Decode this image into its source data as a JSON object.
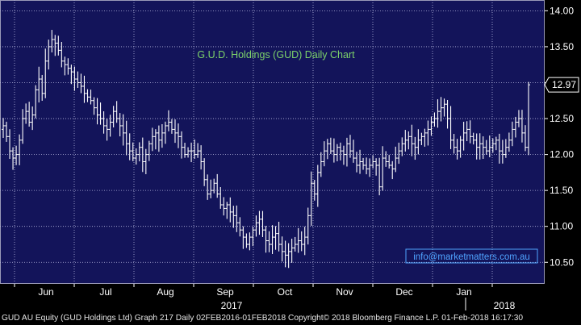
{
  "chart_data": {
    "type": "ohlc",
    "title": "G.U.D. Holdings (GUD) Daily Chart",
    "watermark": "info@marketmatters.com.au",
    "last_price_label": "12.97",
    "y_ticks": [
      "14.00",
      "13.50",
      "13.00",
      "12.50",
      "12.00",
      "11.50",
      "11.00",
      "10.50"
    ],
    "y_tick_values": [
      14.0,
      13.5,
      13.0,
      12.5,
      12.0,
      11.5,
      11.0,
      10.5
    ],
    "ylim": [
      10.2,
      14.15
    ],
    "month_labels": [
      "Jun",
      "Jul",
      "Aug",
      "Sep",
      "Oct",
      "Nov",
      "Dec",
      "Jan"
    ],
    "year_labels": [
      "2017",
      "2018"
    ],
    "grid": true,
    "colors": {
      "background": "#13145a",
      "grid": "#b8b8e0",
      "bars": "#ffffff",
      "title": "#7dd36a",
      "watermark": "#4fa3ff",
      "axis_text": "#ffffff"
    },
    "closes": [
      12.4,
      12.25,
      12.05,
      11.95,
      12.0,
      12.2,
      12.5,
      12.6,
      12.45,
      12.55,
      12.9,
      13.05,
      12.85,
      13.3,
      13.5,
      13.6,
      13.55,
      13.45,
      13.3,
      13.25,
      13.2,
      13.15,
      13.05,
      13.0,
      12.95,
      12.85,
      12.8,
      12.75,
      12.65,
      12.55,
      12.5,
      12.4,
      12.35,
      12.45,
      12.6,
      12.5,
      12.4,
      12.3,
      12.15,
      12.05,
      11.95,
      12.0,
      12.1,
      11.9,
      12.0,
      12.15,
      12.25,
      12.3,
      12.2,
      12.3,
      12.4,
      12.45,
      12.35,
      12.3,
      12.25,
      12.1,
      12.0,
      12.05,
      12.05,
      12.0,
      12.05,
      11.9,
      11.65,
      11.45,
      11.5,
      11.6,
      11.45,
      11.3,
      11.25,
      11.3,
      11.2,
      11.15,
      11.05,
      10.95,
      10.85,
      10.75,
      10.85,
      10.95,
      11.05,
      11.1,
      10.95,
      10.8,
      10.75,
      10.85,
      10.9,
      10.75,
      10.65,
      10.6,
      10.65,
      10.7,
      10.75,
      10.8,
      10.75,
      10.85,
      11.15,
      11.6,
      11.45,
      11.75,
      11.9,
      12.05,
      12.15,
      12.05,
      12.0,
      12.1,
      12.05,
      12.0,
      12.15,
      12.05,
      11.95,
      11.85,
      11.9,
      11.85,
      11.8,
      11.85,
      11.9,
      11.85,
      11.55,
      11.95,
      11.9,
      11.85,
      11.8,
      11.95,
      12.05,
      12.15,
      12.2,
      12.25,
      12.15,
      12.1,
      12.2,
      12.25,
      12.3,
      12.35,
      12.45,
      12.5,
      12.6,
      12.65,
      12.7,
      12.5,
      12.2,
      12.1,
      12.05,
      12.2,
      12.3,
      12.35,
      12.25,
      12.2,
      12.1,
      12.15,
      12.1,
      12.05,
      12.1,
      12.15,
      12.2,
      12.05,
      12.0,
      12.1,
      12.2,
      12.35,
      12.45,
      12.5,
      12.3,
      12.1,
      12.97
    ]
  },
  "footer": {
    "text": "GUD AU Equity (GUD Holdings Ltd) Graph 217  Daily 02FEB2016-01FEB2018 Copyright© 2018 Bloomberg Finance L.P. 01-Feb-2018 16:17:30"
  }
}
